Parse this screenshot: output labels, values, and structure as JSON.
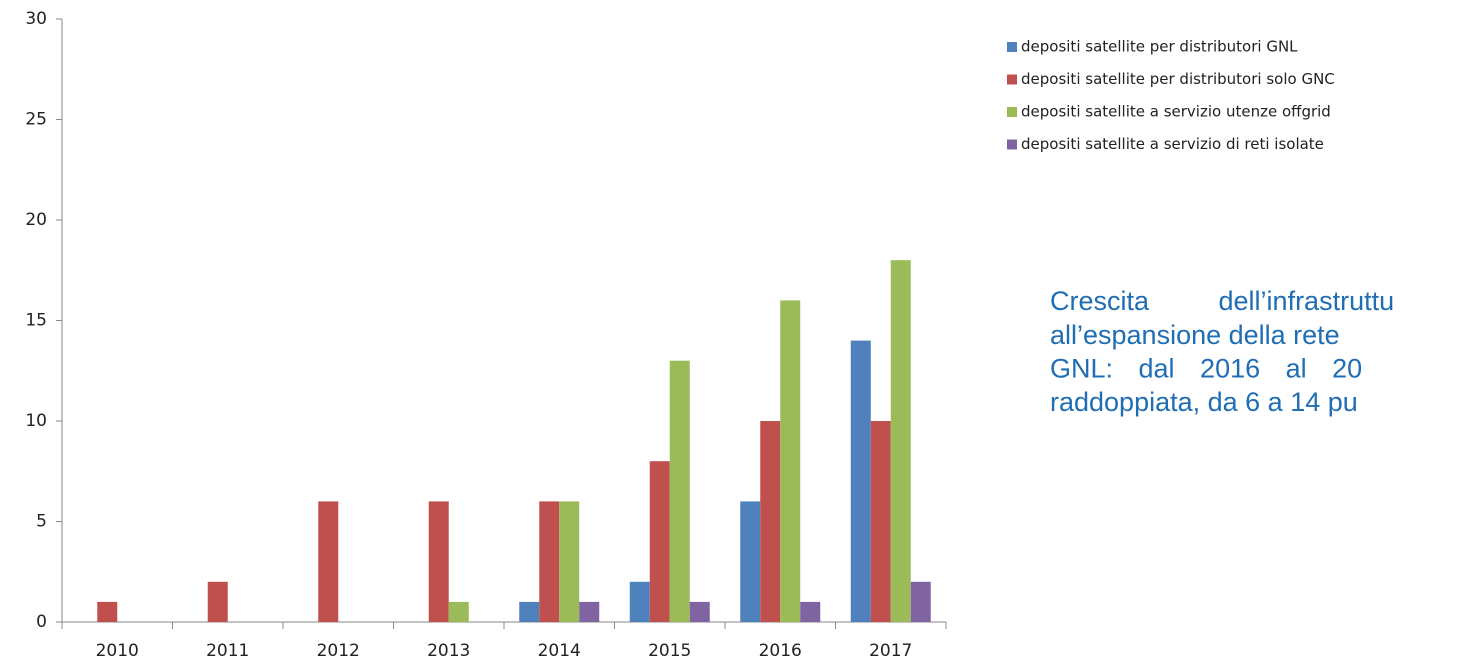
{
  "chart_data": {
    "type": "bar",
    "categories": [
      "2010",
      "2011",
      "2012",
      "2013",
      "2014",
      "2015",
      "2016",
      "2017"
    ],
    "series": [
      {
        "name": "depositi satellite per distributori GNL",
        "color": "#4f81bd",
        "values": [
          0,
          0,
          0,
          0,
          1,
          2,
          6,
          14
        ]
      },
      {
        "name": "depositi satellite per distributori solo GNC",
        "color": "#c0504d",
        "values": [
          1,
          2,
          6,
          6,
          6,
          8,
          10,
          10
        ]
      },
      {
        "name": "depositi satellite a servizio utenze offgrid",
        "color": "#9bbb59",
        "values": [
          0,
          0,
          0,
          1,
          6,
          13,
          16,
          18
        ]
      },
      {
        "name": "depositi satellite a servizio di reti isolate",
        "color": "#8064a2",
        "values": [
          0,
          0,
          0,
          0,
          1,
          1,
          1,
          2
        ]
      }
    ],
    "ylim": [
      0,
      30
    ],
    "yticks": [
      0,
      5,
      10,
      15,
      20,
      25,
      30
    ],
    "grid": false,
    "legend": "right",
    "annotation": [
      "Crescita dell’infrastruttu",
      "all’espansione della rete",
      "GNL: dal 2016 al 20",
      "raddoppiata, da 6 a 14 pu"
    ]
  }
}
